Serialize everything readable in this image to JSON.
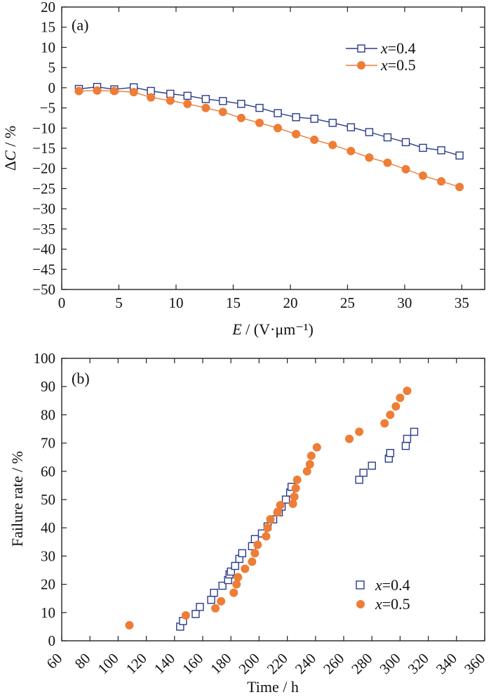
{
  "colors": {
    "blue": "#2b3a8c",
    "orange": "#ee7d36",
    "axis": "#222222"
  },
  "chart_data": [
    {
      "panel": "(a)",
      "type": "line",
      "xlabel_italic": "E",
      "xlabel_rest": " / (V·μm⁻¹)",
      "ylabel_prefix": "Δ",
      "ylabel_italic": "C",
      "ylabel_rest": " / %",
      "xlim": [
        0,
        37
      ],
      "ylim": [
        -50,
        20
      ],
      "xticks": [
        0,
        5,
        10,
        15,
        20,
        25,
        30,
        35
      ],
      "yticks": [
        20,
        15,
        10,
        5,
        0,
        -5,
        -10,
        -15,
        -20,
        -25,
        -30,
        -35,
        -40,
        -45,
        -50
      ],
      "legend_position": "top-right",
      "series": [
        {
          "name_italic": "x",
          "name_rest": "=0.4",
          "marker": "open-square",
          "color": "#2b3a8c",
          "x": [
            1.5,
            3.1,
            4.6,
            6.3,
            7.8,
            9.5,
            11.0,
            12.6,
            14.1,
            15.7,
            17.3,
            18.9,
            20.5,
            22.1,
            23.7,
            25.3,
            26.9,
            28.5,
            30.1,
            31.6,
            33.2,
            34.8
          ],
          "y": [
            -0.3,
            0.2,
            -0.4,
            0.1,
            -0.8,
            -1.5,
            -2.0,
            -2.8,
            -3.3,
            -4.0,
            -5.0,
            -6.3,
            -7.3,
            -7.7,
            -8.7,
            -9.8,
            -11.0,
            -12.3,
            -13.5,
            -14.9,
            -15.5,
            -16.8
          ]
        },
        {
          "name_italic": "x",
          "name_rest": "=0.5",
          "marker": "filled-circle",
          "color": "#ee7d36",
          "x": [
            1.5,
            3.1,
            4.6,
            6.3,
            7.8,
            9.5,
            11.0,
            12.6,
            14.1,
            15.7,
            17.3,
            18.9,
            20.5,
            22.1,
            23.7,
            25.3,
            26.9,
            28.5,
            30.1,
            31.6,
            33.2,
            34.8
          ],
          "y": [
            -0.8,
            -0.7,
            -0.8,
            -1.1,
            -2.4,
            -3.2,
            -4.0,
            -5.0,
            -6.0,
            -7.5,
            -8.7,
            -10.0,
            -11.5,
            -12.9,
            -14.2,
            -15.7,
            -17.3,
            -18.6,
            -20.2,
            -21.8,
            -23.2,
            -24.6
          ]
        }
      ]
    },
    {
      "panel": "(b)",
      "type": "scatter",
      "xlabel": "Time / h",
      "ylabel": "Failure rate / %",
      "xlim": [
        60,
        360
      ],
      "ylim": [
        0,
        100
      ],
      "xticks": [
        60,
        80,
        100,
        120,
        140,
        160,
        180,
        200,
        220,
        240,
        260,
        280,
        300,
        320,
        340,
        360
      ],
      "yticks": [
        0,
        10,
        20,
        30,
        40,
        50,
        60,
        70,
        80,
        90,
        100
      ],
      "legend_position": "bottom-right",
      "series": [
        {
          "name_italic": "x",
          "name_rest": "=0.4",
          "marker": "open-square",
          "color": "#2b3a8c",
          "x": [
            144,
            146,
            155,
            158,
            166,
            168,
            174,
            178,
            179,
            180,
            183,
            186,
            188,
            195,
            197,
            202,
            206,
            210,
            214,
            216,
            219,
            222,
            223,
            271,
            274,
            280,
            292,
            293,
            304,
            305,
            310
          ],
          "y": [
            5,
            7,
            9.5,
            12,
            14.5,
            17,
            19.5,
            21.5,
            23.5,
            24.5,
            26.5,
            29,
            31,
            33.5,
            36,
            38,
            40.5,
            43,
            45.5,
            47.5,
            50,
            52.5,
            54.5,
            57,
            59.5,
            62,
            64.5,
            66.5,
            69,
            71.5,
            74
          ]
        },
        {
          "name_italic": "x",
          "name_rest": "=0.5",
          "marker": "filled-circle",
          "color": "#ee7d36",
          "x": [
            108,
            148,
            169,
            173,
            182,
            184,
            185,
            190,
            195,
            197,
            199,
            205,
            206,
            208,
            213,
            215,
            224,
            225,
            226,
            227,
            234,
            236,
            237,
            241,
            264,
            271,
            289,
            293,
            297,
            300,
            305
          ],
          "y": [
            5.5,
            9,
            11.5,
            14,
            17,
            20,
            22.5,
            25.5,
            28,
            31,
            34,
            37,
            40,
            43,
            45.5,
            48,
            48.5,
            51,
            54,
            57,
            60,
            62.5,
            65.5,
            68.5,
            71.5,
            74,
            77,
            80,
            83,
            86,
            88.5
          ]
        }
      ]
    }
  ]
}
